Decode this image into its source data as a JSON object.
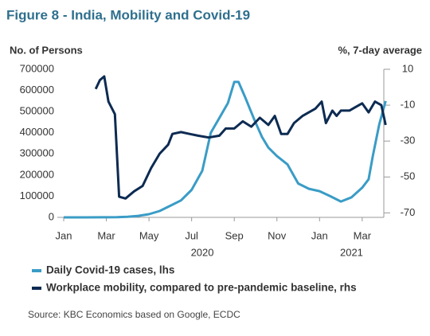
{
  "chart_data": {
    "type": "line",
    "title": "Figure 8 - India, Mobility and Covid-19",
    "y_axis_label": "No. of Persons",
    "y2_axis_label": "%, 7-day average",
    "xlim": [
      0,
      15.5
    ],
    "xticks": [
      {
        "value": 0,
        "label": "Jan"
      },
      {
        "value": 2,
        "label": "Mar"
      },
      {
        "value": 4,
        "label": "May"
      },
      {
        "value": 6,
        "label": "Jul"
      },
      {
        "value": 8,
        "label": "Sep"
      },
      {
        "value": 10,
        "label": "Nov"
      },
      {
        "value": 12,
        "label": "Jan"
      },
      {
        "value": 14,
        "label": "Mar"
      }
    ],
    "year_labels": [
      {
        "value": 6.5,
        "label": "2020"
      },
      {
        "value": 13.5,
        "label": "2021"
      }
    ],
    "ylim": [
      0,
      700000
    ],
    "yticks": [
      0,
      100000,
      200000,
      300000,
      400000,
      500000,
      600000,
      700000
    ],
    "y2lim": [
      -72.5,
      10
    ],
    "y2ticks": [
      10,
      -10,
      -30,
      -50,
      -70
    ],
    "series": [
      {
        "name": "Daily Covid-19 cases, lhs",
        "color": "#3a9cc6",
        "x": [
          0,
          1,
          2,
          2.5,
          3,
          3.5,
          4,
          4.5,
          5,
          5.5,
          6,
          6.5,
          6.9,
          7.3,
          7.7,
          8.0,
          8.2,
          8.5,
          8.95,
          9.3,
          9.6,
          10,
          10.5,
          11,
          11.5,
          12,
          12.5,
          13,
          13.5,
          14,
          14.3,
          14.5,
          14.8,
          15.1
        ],
        "values": [
          0,
          0,
          500,
          1000,
          3000,
          7000,
          15000,
          30000,
          55000,
          80000,
          130000,
          220000,
          400000,
          470000,
          540000,
          640000,
          640000,
          570000,
          460000,
          380000,
          330000,
          290000,
          250000,
          160000,
          135000,
          124000,
          100000,
          75000,
          95000,
          140000,
          180000,
          290000,
          440000,
          550000
        ]
      },
      {
        "name": "Workplace mobility, compared to pre-pandemic baseline, rhs",
        "color": "#0d2b52",
        "axis": "y2",
        "x": [
          1.5,
          1.7,
          1.9,
          2.1,
          2.4,
          2.6,
          2.9,
          3.3,
          3.7,
          4.1,
          4.5,
          4.9,
          5.1,
          5.5,
          5.9,
          6.3,
          6.8,
          7.3,
          7.6,
          8.0,
          8.4,
          8.8,
          9.2,
          9.6,
          9.9,
          10.2,
          10.5,
          10.8,
          11.2,
          11.5,
          11.8,
          12.1,
          12.3,
          12.6,
          12.8,
          13.0,
          13.4,
          13.7,
          14.0,
          14.3,
          14.6,
          14.9,
          15.1
        ],
        "values": [
          -1,
          4,
          6,
          -8,
          -15,
          -61,
          -62,
          -58,
          -55,
          -45,
          -37,
          -32,
          -26,
          -25,
          -26,
          -27,
          -28,
          -27,
          -23,
          -23,
          -19,
          -22,
          -17,
          -21,
          -16,
          -26,
          -26,
          -20,
          -16,
          -14,
          -12,
          -8,
          -20,
          -13,
          -16,
          -13,
          -13,
          -11,
          -9,
          -14,
          -8,
          -10,
          -21
        ]
      }
    ],
    "source": "Source: KBC Economics based on Google, ECDC"
  }
}
